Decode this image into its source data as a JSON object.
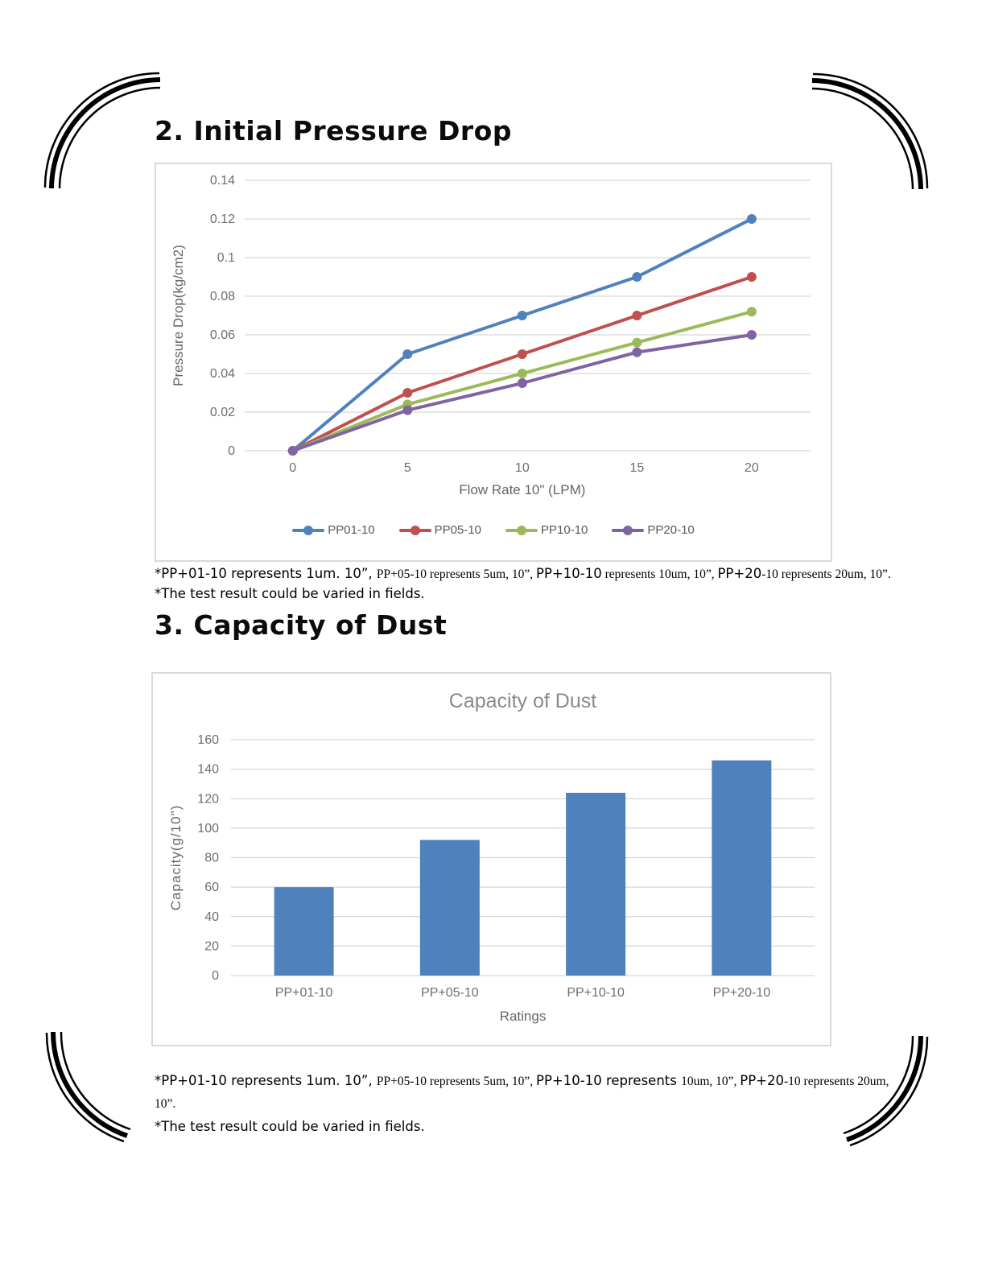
{
  "sections": {
    "pressure_drop": {
      "title": "2. Initial Pressure Drop",
      "footnote_segments": [
        {
          "style": "lg",
          "text": "*PP+01-10 represents 1um. 10”, "
        },
        {
          "style": "sm",
          "text": "PP+05-10 represents 5um, 10”, "
        },
        {
          "style": "lg",
          "text": "PP+10-10"
        },
        {
          "style": "sm",
          "text": " represents 10um, 10”, "
        },
        {
          "style": "lg",
          "text": "PP+20"
        },
        {
          "style": "sm",
          "text": "-10 represents 20um, 10”."
        }
      ],
      "footnote_line2": "*The test result could be varied in fields."
    },
    "dust_capacity": {
      "title": "3. Capacity of Dust",
      "footnote_segments": [
        {
          "style": "lg",
          "text": "*PP+01-10 represents 1um. 10”, "
        },
        {
          "style": "sm",
          "text": "PP+05-10 represents 5um, 10”, "
        },
        {
          "style": "lg",
          "text": "PP+10-10 represents "
        },
        {
          "style": "sm",
          "text": "10um, 10”, "
        },
        {
          "style": "lg",
          "text": "PP+20"
        },
        {
          "style": "sm",
          "text": "-10 represents 20um,"
        }
      ],
      "footnote_line2": "10”.",
      "footnote_line3": "*The test result could be varied in fields."
    }
  },
  "colors": {
    "grid": "#d6d6d6",
    "axis_text": "#6e6e6e",
    "axis_title": "#666666",
    "chart_title": "#8a8a8a",
    "legend_text": "#595959",
    "chart_border": "#d9d9d9"
  },
  "chart_data": [
    {
      "type": "line",
      "x": [
        0,
        5,
        10,
        15,
        20
      ],
      "xticks": [
        "0",
        "5",
        "10",
        "15",
        "20"
      ],
      "series": [
        {
          "name": "PP01-10",
          "color": "#4F81BD",
          "values": [
            0,
            0.05,
            0.07,
            0.09,
            0.12
          ]
        },
        {
          "name": "PP05-10",
          "color": "#C0504D",
          "values": [
            0,
            0.03,
            0.05,
            0.07,
            0.09
          ]
        },
        {
          "name": "PP10-10",
          "color": "#9BBB59",
          "values": [
            0,
            0.024,
            0.04,
            0.056,
            0.072
          ]
        },
        {
          "name": "PP20-10",
          "color": "#8064A2",
          "values": [
            0,
            0.021,
            0.035,
            0.051,
            0.06
          ]
        }
      ],
      "xlabel": "Flow Rate 10\" (LPM)",
      "ylabel": "Pressure Drop(kg/cm2)",
      "ylim": [
        0,
        0.14
      ],
      "yticks": [
        0,
        0.02,
        0.04,
        0.06,
        0.08,
        0.1,
        0.12,
        0.14
      ],
      "ytick_labels": [
        "0",
        "0.02",
        "0.04",
        "0.06",
        "0.08",
        "0.1",
        "0.12",
        "0.14"
      ],
      "xlim": [
        0,
        20
      ],
      "grid": true,
      "legend_position": "bottom"
    },
    {
      "type": "bar",
      "title": "Capacity of Dust",
      "categories": [
        "PP+01-10",
        "PP+05-10",
        "PP+10-10",
        "PP+20-10"
      ],
      "values": [
        60,
        92,
        124,
        146
      ],
      "xlabel": "Ratings",
      "ylabel": "Capacity(g/10\")",
      "ylim": [
        0,
        160
      ],
      "yticks": [
        0,
        20,
        40,
        60,
        80,
        100,
        120,
        140,
        160
      ],
      "bar_color": "#4F81BD",
      "grid": true
    }
  ]
}
